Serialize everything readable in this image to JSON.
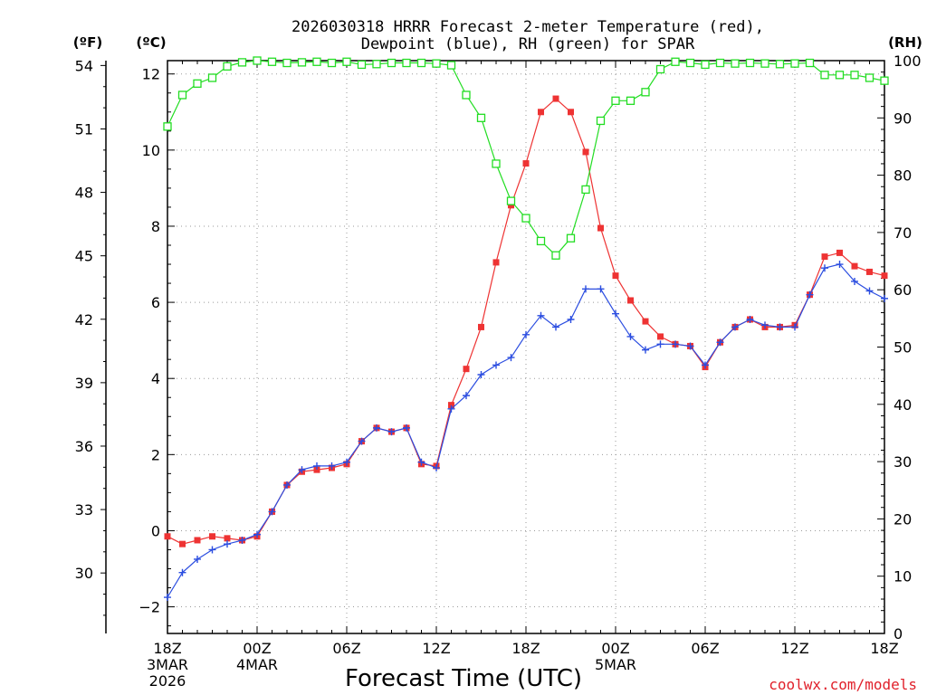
{
  "title_line1": "2026030318 HRRR Forecast 2-meter Temperature (red),",
  "title_line2": "Dewpoint (blue), RH (green) for SPAR",
  "unit_f": "(ºF)",
  "unit_c": "(ºC)",
  "unit_rh": "(RH)",
  "xlabel": "Forecast Time (UTC)",
  "credit": "coolwx.com/models",
  "colors": {
    "temp": "#ee3333",
    "dew": "#2b4de0",
    "rh": "#22dd22"
  },
  "chart_data": {
    "type": "line",
    "title": "2026030318 HRRR Forecast 2-meter Temperature (red), Dewpoint (blue), RH (green) for SPAR",
    "xlabel": "Forecast Time (UTC)",
    "x_hours": [
      0,
      1,
      2,
      3,
      4,
      5,
      6,
      7,
      8,
      9,
      10,
      11,
      12,
      13,
      14,
      15,
      16,
      17,
      18,
      19,
      20,
      21,
      22,
      23,
      24,
      25,
      26,
      27,
      28,
      29,
      30,
      31,
      32,
      33,
      34,
      35,
      36,
      37,
      38,
      39,
      40,
      41,
      42,
      43,
      44,
      45,
      46,
      47,
      48
    ],
    "xlim": [
      0,
      48
    ],
    "x_ticks": [
      {
        "h": 0,
        "lines": [
          "18Z",
          "3MAR",
          "2026"
        ]
      },
      {
        "h": 6,
        "lines": [
          "00Z",
          "4MAR"
        ]
      },
      {
        "h": 12,
        "lines": [
          "06Z"
        ]
      },
      {
        "h": 18,
        "lines": [
          "12Z"
        ]
      },
      {
        "h": 24,
        "lines": [
          "18Z"
        ]
      },
      {
        "h": 30,
        "lines": [
          "00Z",
          "5MAR"
        ]
      },
      {
        "h": 36,
        "lines": [
          "06Z"
        ]
      },
      {
        "h": 42,
        "lines": [
          "12Z"
        ]
      },
      {
        "h": 48,
        "lines": [
          "18Z"
        ]
      }
    ],
    "y_left_c": {
      "label": "°C",
      "lim": [
        -2.7,
        12.35
      ],
      "ticks": [
        -2,
        0,
        2,
        4,
        6,
        8,
        10,
        12
      ]
    },
    "y_left_f": {
      "label": "°F",
      "ticks": [
        30,
        33,
        36,
        39,
        42,
        45,
        48,
        51,
        54
      ]
    },
    "y_right_rh": {
      "label": "RH",
      "lim": [
        0,
        100
      ],
      "ticks": [
        0,
        10,
        20,
        30,
        40,
        50,
        60,
        70,
        80,
        90,
        100
      ]
    },
    "series": [
      {
        "name": "Temperature",
        "units": "°C",
        "axis": "c",
        "color": "#ee3333",
        "marker": "filled-square",
        "values": [
          -0.15,
          -0.35,
          -0.25,
          -0.15,
          -0.2,
          -0.25,
          -0.15,
          0.5,
          1.2,
          1.55,
          1.6,
          1.65,
          1.75,
          2.35,
          2.7,
          2.6,
          2.7,
          1.75,
          1.7,
          3.3,
          4.25,
          5.35,
          7.05,
          8.55,
          9.65,
          11.0,
          11.35,
          11.0,
          9.95,
          7.95,
          6.7,
          6.05,
          5.5,
          5.1,
          4.9,
          4.85,
          4.3,
          4.95,
          5.35,
          5.55,
          5.35,
          5.35,
          5.4,
          6.2,
          7.2,
          7.3,
          6.95,
          6.8,
          6.7
        ]
      },
      {
        "name": "Dewpoint",
        "units": "°C",
        "axis": "c",
        "color": "#2b4de0",
        "marker": "plus",
        "values": [
          -1.75,
          -1.1,
          -0.75,
          -0.5,
          -0.35,
          -0.25,
          -0.1,
          0.5,
          1.2,
          1.6,
          1.7,
          1.7,
          1.8,
          2.35,
          2.7,
          2.6,
          2.7,
          1.8,
          1.65,
          3.2,
          3.55,
          4.1,
          4.35,
          4.55,
          5.15,
          5.65,
          5.35,
          5.55,
          6.35,
          6.35,
          5.7,
          5.1,
          4.75,
          4.9,
          4.9,
          4.85,
          4.35,
          4.95,
          5.35,
          5.55,
          5.4,
          5.35,
          5.35,
          6.2,
          6.9,
          7.0,
          6.55,
          6.3,
          6.1
        ]
      },
      {
        "name": "RH",
        "units": "%",
        "axis": "rh",
        "color": "#22dd22",
        "marker": "open-square",
        "values": [
          88.5,
          94,
          96,
          97,
          99,
          99.7,
          100,
          99.8,
          99.6,
          99.7,
          99.8,
          99.6,
          99.8,
          99.3,
          99.4,
          99.6,
          99.6,
          99.6,
          99.5,
          99.2,
          94,
          90,
          82,
          75.5,
          72.5,
          68.5,
          66,
          69,
          77.5,
          89.5,
          93,
          93,
          94.5,
          98.5,
          99.8,
          99.6,
          99.3,
          99.6,
          99.5,
          99.6,
          99.5,
          99.4,
          99.5,
          99.6,
          97.5,
          97.5,
          97.5,
          97,
          96.5
        ]
      }
    ]
  }
}
